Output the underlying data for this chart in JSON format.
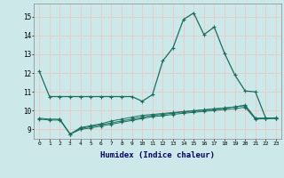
{
  "xlabel": "Humidex (Indice chaleur)",
  "background_color": "#cce8e8",
  "grid_color": "#e8c8c8",
  "line_color": "#1a6e5e",
  "xlim": [
    -0.5,
    23.5
  ],
  "ylim": [
    8.5,
    15.7
  ],
  "yticks": [
    9,
    10,
    11,
    12,
    13,
    14,
    15
  ],
  "xticks": [
    0,
    1,
    2,
    3,
    4,
    5,
    6,
    7,
    8,
    9,
    10,
    11,
    12,
    13,
    14,
    15,
    16,
    17,
    18,
    19,
    20,
    21,
    22,
    23
  ],
  "line1_x": [
    0,
    1,
    2,
    3,
    4,
    5,
    6,
    7,
    8,
    9,
    10,
    11,
    12,
    13,
    14,
    15,
    16,
    17,
    18,
    19,
    20,
    21,
    22,
    23
  ],
  "line1_y": [
    12.1,
    10.75,
    10.75,
    10.75,
    10.75,
    10.75,
    10.75,
    10.75,
    10.75,
    10.75,
    10.5,
    10.85,
    12.65,
    13.35,
    14.85,
    15.2,
    14.05,
    14.45,
    13.05,
    11.9,
    11.05,
    11.0,
    9.6,
    9.6
  ],
  "line2_x": [
    2,
    3,
    4,
    5,
    6,
    7,
    8,
    9,
    10,
    11,
    12,
    13,
    14,
    15,
    16,
    17,
    18,
    19,
    20,
    21,
    22,
    23
  ],
  "line2_y": [
    9.55,
    8.75,
    9.1,
    9.2,
    9.3,
    9.45,
    9.55,
    9.65,
    9.75,
    9.8,
    9.85,
    9.9,
    9.95,
    10.0,
    10.05,
    10.1,
    10.15,
    10.2,
    10.3,
    9.6,
    9.6,
    9.6
  ],
  "line3_x": [
    0,
    1,
    2,
    3,
    4,
    5,
    6,
    7,
    8,
    9,
    10,
    11,
    12,
    13,
    14,
    15,
    16,
    17,
    18,
    19,
    20,
    21,
    22,
    23
  ],
  "line3_y": [
    9.6,
    9.55,
    9.55,
    8.75,
    9.05,
    9.15,
    9.25,
    9.35,
    9.45,
    9.55,
    9.65,
    9.75,
    9.8,
    9.87,
    9.93,
    9.98,
    10.03,
    10.08,
    10.13,
    10.2,
    10.27,
    9.58,
    9.6,
    9.62
  ],
  "line4_x": [
    0,
    1,
    2,
    3,
    4,
    5,
    6,
    7,
    8,
    9,
    10,
    11,
    12,
    13,
    14,
    15,
    16,
    17,
    18,
    19,
    20,
    21,
    22,
    23
  ],
  "line4_y": [
    9.55,
    9.5,
    9.5,
    8.75,
    9.0,
    9.08,
    9.18,
    9.28,
    9.38,
    9.48,
    9.58,
    9.68,
    9.73,
    9.8,
    9.86,
    9.91,
    9.96,
    10.01,
    10.06,
    10.11,
    10.18,
    9.55,
    9.57,
    9.6
  ]
}
